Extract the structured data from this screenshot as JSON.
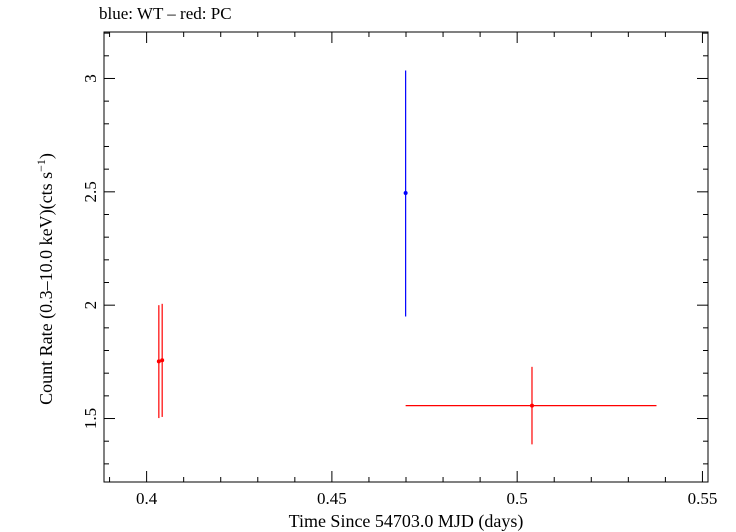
{
  "chart_data": {
    "type": "scatter",
    "title": "blue: WT – red: PC",
    "xlabel": "Time Since 54703.0 MJD (days)",
    "ylabel_main": "Count Rate (0.3–10.0 keV)(cts s",
    "ylabel_sup": "−1",
    "ylabel_close": ")",
    "xlim": [
      0.3885,
      0.5515
    ],
    "ylim": [
      1.22,
      3.205
    ],
    "x_major_ticks": [
      0.4,
      0.45,
      0.5,
      0.55
    ],
    "x_tick_labels": [
      "0.4",
      "0.45",
      "0.5",
      "0.55"
    ],
    "x_minor_step": 0.01,
    "y_major_ticks": [
      1.5,
      2,
      2.5,
      3
    ],
    "y_tick_labels": [
      "1.5",
      "2",
      "2.5",
      "3"
    ],
    "y_minor_step": 0.1,
    "series": [
      {
        "name": "WT",
        "color": "#0000ff",
        "points": [
          {
            "x": 0.4699,
            "y": 2.495,
            "xerr_lo": 0.0,
            "xerr_hi": 0.0,
            "yerr_lo": 0.545,
            "yerr_hi": 0.54
          }
        ]
      },
      {
        "name": "PC",
        "color": "#ff0000",
        "points": [
          {
            "x": 0.4033,
            "y": 1.752,
            "xerr_lo": 0.0,
            "xerr_hi": 0.0,
            "yerr_lo": 0.25,
            "yerr_hi": 0.248
          },
          {
            "x": 0.4042,
            "y": 1.757,
            "xerr_lo": 0.0,
            "xerr_hi": 0.0,
            "yerr_lo": 0.25,
            "yerr_hi": 0.249
          },
          {
            "x": 0.504,
            "y": 1.557,
            "xerr_lo": 0.0341,
            "xerr_hi": 0.0336,
            "yerr_lo": 0.171,
            "yerr_hi": 0.171
          }
        ]
      }
    ]
  }
}
